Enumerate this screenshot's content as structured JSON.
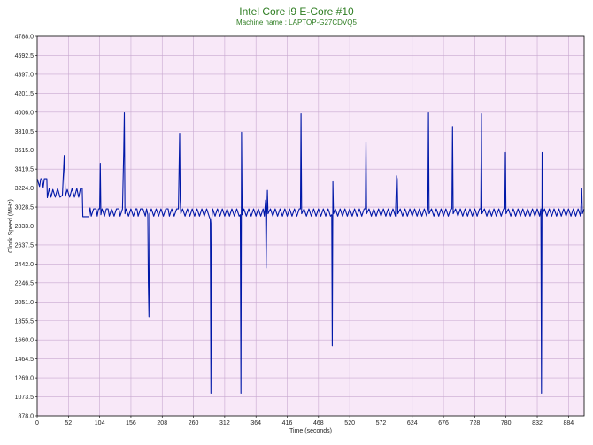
{
  "chart_data": {
    "type": "line",
    "title": "Intel Core i9 E-Core #10",
    "subtitle": "Machine name : LAPTOP-G27CDVQ5",
    "xlabel": "Time (seconds)",
    "ylabel": "Clock Speed (MHz)",
    "xlim": [
      0,
      910
    ],
    "ylim": [
      878.0,
      4788.0
    ],
    "x_ticks": [
      0,
      52,
      104,
      156,
      208,
      260,
      312,
      364,
      416,
      468,
      520,
      572,
      624,
      676,
      728,
      780,
      832,
      884
    ],
    "y_ticks": [
      "878.0",
      "1073.5",
      "1269.0",
      "1464.5",
      "1660.0",
      "1855.5",
      "2051.0",
      "2246.5",
      "2442.0",
      "2637.5",
      "2833.0",
      "3028.5",
      "3224.0",
      "3419.5",
      "3615.0",
      "3810.5",
      "4006.0",
      "4201.5",
      "4397.0",
      "4592.5",
      "4788.0"
    ],
    "grid": true,
    "legend": "none",
    "series": [
      {
        "points": [
          [
            0,
            3320
          ],
          [
            4,
            3240
          ],
          [
            6,
            3320
          ],
          [
            8,
            3320
          ],
          [
            10,
            3230
          ],
          [
            12,
            3320
          ],
          [
            16,
            3320
          ],
          [
            17,
            3125
          ],
          [
            20,
            3220
          ],
          [
            23,
            3130
          ],
          [
            26,
            3210
          ],
          [
            30,
            3130
          ],
          [
            34,
            3220
          ],
          [
            38,
            3130
          ],
          [
            42,
            3150
          ],
          [
            45,
            3560
          ],
          [
            47,
            3140
          ],
          [
            50,
            3210
          ],
          [
            54,
            3130
          ],
          [
            58,
            3220
          ],
          [
            62,
            3130
          ],
          [
            66,
            3220
          ],
          [
            69,
            3130
          ],
          [
            72,
            3220
          ],
          [
            75,
            3220
          ],
          [
            76,
            2930
          ],
          [
            82,
            2930
          ],
          [
            86,
            2930
          ],
          [
            88,
            3020
          ],
          [
            90,
            2935
          ],
          [
            94,
            3010
          ],
          [
            98,
            3010
          ],
          [
            100,
            2935
          ],
          [
            102,
            3010
          ],
          [
            104,
            3010
          ],
          [
            105,
            3480
          ],
          [
            106,
            2950
          ],
          [
            108,
            3010
          ],
          [
            112,
            2935
          ],
          [
            115,
            3010
          ],
          [
            118,
            3010
          ],
          [
            120,
            2935
          ],
          [
            124,
            3010
          ],
          [
            128,
            2935
          ],
          [
            132,
            3010
          ],
          [
            136,
            3010
          ],
          [
            138,
            2935
          ],
          [
            142,
            3010
          ],
          [
            144,
            3600
          ],
          [
            145,
            4000
          ],
          [
            146,
            2960
          ],
          [
            148,
            3010
          ],
          [
            152,
            2935
          ],
          [
            156,
            3010
          ],
          [
            160,
            2935
          ],
          [
            164,
            3010
          ],
          [
            166,
            3010
          ],
          [
            168,
            2935
          ],
          [
            172,
            3010
          ],
          [
            176,
            3010
          ],
          [
            180,
            2935
          ],
          [
            182,
            3010
          ],
          [
            184,
            2950
          ],
          [
            185,
            2250
          ],
          [
            186,
            1900
          ],
          [
            187,
            2960
          ],
          [
            190,
            3010
          ],
          [
            194,
            2935
          ],
          [
            198,
            3010
          ],
          [
            202,
            2935
          ],
          [
            206,
            3010
          ],
          [
            210,
            2935
          ],
          [
            214,
            3010
          ],
          [
            218,
            3010
          ],
          [
            220,
            2935
          ],
          [
            224,
            3010
          ],
          [
            228,
            2935
          ],
          [
            232,
            3010
          ],
          [
            235,
            3010
          ],
          [
            236,
            3400
          ],
          [
            237,
            3790
          ],
          [
            238,
            3100
          ],
          [
            239,
            2960
          ],
          [
            242,
            3010
          ],
          [
            246,
            2935
          ],
          [
            250,
            3010
          ],
          [
            254,
            2935
          ],
          [
            258,
            3010
          ],
          [
            262,
            2935
          ],
          [
            266,
            3010
          ],
          [
            270,
            2935
          ],
          [
            274,
            3010
          ],
          [
            278,
            2935
          ],
          [
            282,
            3010
          ],
          [
            286,
            2935
          ],
          [
            288,
            2900
          ],
          [
            289,
            1110
          ],
          [
            290,
            2860
          ],
          [
            292,
            3010
          ],
          [
            296,
            2935
          ],
          [
            300,
            3010
          ],
          [
            304,
            2935
          ],
          [
            308,
            3010
          ],
          [
            312,
            2935
          ],
          [
            316,
            3010
          ],
          [
            320,
            2935
          ],
          [
            324,
            3010
          ],
          [
            328,
            2935
          ],
          [
            332,
            3010
          ],
          [
            336,
            2935
          ],
          [
            338,
            2950
          ],
          [
            339,
            1110
          ],
          [
            340,
            3800
          ],
          [
            341,
            2950
          ],
          [
            344,
            3010
          ],
          [
            348,
            2935
          ],
          [
            352,
            3010
          ],
          [
            356,
            2935
          ],
          [
            360,
            3010
          ],
          [
            364,
            2935
          ],
          [
            368,
            3010
          ],
          [
            372,
            2935
          ],
          [
            376,
            3010
          ],
          [
            378,
            2935
          ],
          [
            380,
            3100
          ],
          [
            381,
            2400
          ],
          [
            382,
            2960
          ],
          [
            383,
            3200
          ],
          [
            384,
            2960
          ],
          [
            388,
            3010
          ],
          [
            392,
            2935
          ],
          [
            396,
            3010
          ],
          [
            400,
            2935
          ],
          [
            404,
            3010
          ],
          [
            408,
            2935
          ],
          [
            412,
            3010
          ],
          [
            416,
            2935
          ],
          [
            420,
            3010
          ],
          [
            424,
            2935
          ],
          [
            428,
            3010
          ],
          [
            432,
            2935
          ],
          [
            436,
            3010
          ],
          [
            438,
            3010
          ],
          [
            439,
            3990
          ],
          [
            440,
            2960
          ],
          [
            444,
            3010
          ],
          [
            448,
            2935
          ],
          [
            452,
            3010
          ],
          [
            456,
            2935
          ],
          [
            460,
            3010
          ],
          [
            464,
            2935
          ],
          [
            468,
            3010
          ],
          [
            472,
            2935
          ],
          [
            476,
            3010
          ],
          [
            480,
            2935
          ],
          [
            484,
            3010
          ],
          [
            488,
            2935
          ],
          [
            490,
            2950
          ],
          [
            491,
            1600
          ],
          [
            492,
            3290
          ],
          [
            493,
            2960
          ],
          [
            496,
            3010
          ],
          [
            500,
            2935
          ],
          [
            504,
            3010
          ],
          [
            508,
            2935
          ],
          [
            512,
            3010
          ],
          [
            516,
            2935
          ],
          [
            520,
            3010
          ],
          [
            524,
            2935
          ],
          [
            528,
            3010
          ],
          [
            532,
            2935
          ],
          [
            536,
            3010
          ],
          [
            540,
            2935
          ],
          [
            544,
            3010
          ],
          [
            546,
            3010
          ],
          [
            547,
            3700
          ],
          [
            548,
            2960
          ],
          [
            552,
            3010
          ],
          [
            556,
            2935
          ],
          [
            560,
            3010
          ],
          [
            564,
            2935
          ],
          [
            568,
            3010
          ],
          [
            572,
            2935
          ],
          [
            576,
            3010
          ],
          [
            580,
            2935
          ],
          [
            584,
            3010
          ],
          [
            588,
            2935
          ],
          [
            592,
            3010
          ],
          [
            596,
            2935
          ],
          [
            598,
            3350
          ],
          [
            599,
            3320
          ],
          [
            600,
            2960
          ],
          [
            604,
            3010
          ],
          [
            608,
            2935
          ],
          [
            612,
            3010
          ],
          [
            616,
            2935
          ],
          [
            620,
            3010
          ],
          [
            624,
            2935
          ],
          [
            628,
            3010
          ],
          [
            632,
            2935
          ],
          [
            636,
            3010
          ],
          [
            640,
            2935
          ],
          [
            644,
            3010
          ],
          [
            648,
            2935
          ],
          [
            650,
            3010
          ],
          [
            651,
            4000
          ],
          [
            652,
            2960
          ],
          [
            656,
            3010
          ],
          [
            660,
            2935
          ],
          [
            664,
            3010
          ],
          [
            668,
            2935
          ],
          [
            672,
            3010
          ],
          [
            676,
            2935
          ],
          [
            680,
            3010
          ],
          [
            684,
            2935
          ],
          [
            688,
            3010
          ],
          [
            690,
            3010
          ],
          [
            691,
            3860
          ],
          [
            692,
            2960
          ],
          [
            696,
            3010
          ],
          [
            700,
            2935
          ],
          [
            704,
            3010
          ],
          [
            708,
            2935
          ],
          [
            712,
            3010
          ],
          [
            716,
            2935
          ],
          [
            720,
            3010
          ],
          [
            724,
            2935
          ],
          [
            728,
            3010
          ],
          [
            732,
            2935
          ],
          [
            736,
            3010
          ],
          [
            738,
            3010
          ],
          [
            739,
            3990
          ],
          [
            740,
            2960
          ],
          [
            744,
            3010
          ],
          [
            748,
            2935
          ],
          [
            752,
            3010
          ],
          [
            756,
            2935
          ],
          [
            760,
            3010
          ],
          [
            764,
            2935
          ],
          [
            768,
            3010
          ],
          [
            772,
            2935
          ],
          [
            776,
            3010
          ],
          [
            778,
            3010
          ],
          [
            779,
            3590
          ],
          [
            780,
            2960
          ],
          [
            784,
            3010
          ],
          [
            788,
            2935
          ],
          [
            792,
            3010
          ],
          [
            796,
            2935
          ],
          [
            800,
            3010
          ],
          [
            804,
            2935
          ],
          [
            808,
            3010
          ],
          [
            812,
            2935
          ],
          [
            816,
            3010
          ],
          [
            820,
            2935
          ],
          [
            824,
            3010
          ],
          [
            828,
            2935
          ],
          [
            832,
            3010
          ],
          [
            836,
            2935
          ],
          [
            838,
            3010
          ],
          [
            839,
            1110
          ],
          [
            840,
            3590
          ],
          [
            841,
            2960
          ],
          [
            844,
            3010
          ],
          [
            848,
            2935
          ],
          [
            852,
            3010
          ],
          [
            856,
            2935
          ],
          [
            860,
            3010
          ],
          [
            864,
            2935
          ],
          [
            868,
            3010
          ],
          [
            872,
            2935
          ],
          [
            876,
            3010
          ],
          [
            880,
            2935
          ],
          [
            884,
            3010
          ],
          [
            888,
            2935
          ],
          [
            892,
            3010
          ],
          [
            896,
            2935
          ],
          [
            900,
            3010
          ],
          [
            904,
            2935
          ],
          [
            906,
            3220
          ],
          [
            907,
            2960
          ],
          [
            910,
            3010
          ]
        ]
      }
    ]
  },
  "colors": {
    "title": "#2e7d22",
    "subtitle": "#2e7d22",
    "plot_background": "#f8e8f8",
    "grid": "#c8a8d0",
    "line": "#0018a8",
    "axis": "#000000"
  }
}
